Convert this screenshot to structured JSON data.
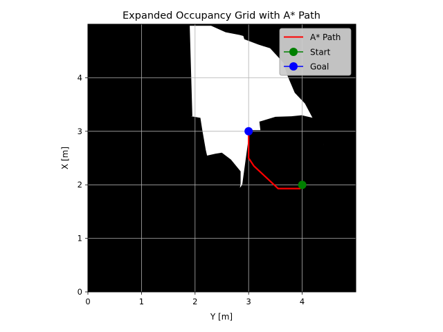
{
  "chart_data": {
    "type": "line",
    "title": "Expanded Occupancy Grid with A* Path",
    "xlabel": "Y [m]",
    "ylabel": "X [m]",
    "xlim": [
      0,
      5
    ],
    "ylim": [
      0,
      5
    ],
    "xticks": [
      "0",
      "1",
      "2",
      "3",
      "4"
    ],
    "yticks": [
      "0",
      "1",
      "2",
      "3",
      "4"
    ],
    "grid": true,
    "legend_position": "top-right",
    "background": {
      "type": "occupancy-grid",
      "occupied_color": "#000000",
      "free_color": "#ffffff",
      "free_regions": [
        [
          [
            1.93,
            3.28
          ],
          [
            2.1,
            3.25
          ],
          [
            2.13,
            3.05
          ],
          [
            2.2,
            2.65
          ],
          [
            2.28,
            2.3
          ],
          [
            2.37,
            2.05
          ],
          [
            2.6,
            1.83
          ],
          [
            2.78,
            1.87
          ],
          [
            2.88,
            2.0
          ],
          [
            3.02,
            3.02
          ],
          [
            3.02,
            3.1
          ],
          [
            3.16,
            3.65
          ],
          [
            3.18,
            4.03
          ],
          [
            3.02,
            4.05
          ],
          [
            2.88,
            3.92
          ],
          [
            2.65,
            3.83
          ],
          [
            2.5,
            3.77
          ],
          [
            2.38,
            3.73
          ],
          [
            2.22,
            3.65
          ],
          [
            2.12,
            3.33
          ]
        ],
        [
          [
            1.9,
            4.97
          ],
          [
            2.3,
            4.97
          ],
          [
            2.57,
            4.85
          ],
          [
            2.83,
            4.8
          ],
          [
            2.9,
            4.78
          ],
          [
            2.92,
            4.72
          ],
          [
            3.18,
            4.62
          ],
          [
            3.4,
            4.55
          ],
          [
            3.65,
            4.28
          ],
          [
            3.72,
            4.05
          ],
          [
            3.86,
            3.72
          ],
          [
            4.05,
            3.52
          ],
          [
            4.23,
            3.18
          ],
          [
            4.4,
            3.0
          ],
          [
            4.4,
            2.74
          ],
          [
            4.18,
            2.85
          ],
          [
            3.9,
            3.05
          ],
          [
            3.7,
            3.08
          ],
          [
            3.55,
            3.05
          ],
          [
            3.44,
            3.0
          ],
          [
            3.25,
            3.02
          ],
          [
            3.02,
            3.02
          ],
          [
            2.88,
            3.1
          ],
          [
            2.6,
            3.45
          ],
          [
            2.25,
            3.48
          ],
          [
            2.1,
            3.3
          ],
          [
            1.95,
            3.28
          ]
        ]
      ],
      "obstacles_inside": [
        [
          [
            1.65,
            2.5
          ],
          [
            1.66,
            2.3
          ],
          [
            1.75,
            2.05
          ],
          [
            2.0,
            1.9
          ],
          [
            2.55,
            1.67
          ],
          [
            2.8,
            1.69
          ],
          [
            2.85,
            2.03
          ],
          [
            2.85,
            2.25
          ],
          [
            2.67,
            2.47
          ],
          [
            2.5,
            2.6
          ],
          [
            2.38,
            2.58
          ],
          [
            2.15,
            2.53
          ],
          [
            1.85,
            2.58
          ],
          [
            1.67,
            2.6
          ]
        ],
        [
          [
            3.24,
            2.85
          ],
          [
            3.3,
            2.2
          ],
          [
            3.45,
            2.05
          ],
          [
            3.7,
            1.95
          ],
          [
            3.95,
            2.08
          ],
          [
            4.2,
            2.3
          ],
          [
            4.4,
            2.7
          ],
          [
            4.42,
            2.98
          ],
          [
            4.38,
            3.05
          ],
          [
            4.2,
            3.25
          ],
          [
            3.99,
            3.3
          ],
          [
            3.8,
            3.28
          ],
          [
            3.5,
            3.27
          ],
          [
            3.2,
            3.18
          ]
        ]
      ]
    },
    "series": [
      {
        "name": "A* Path",
        "color": "#ff0000",
        "marker": "none",
        "x": [
          3.0,
          3.0,
          3.1,
          3.55,
          3.97
        ],
        "y": [
          2.93,
          2.5,
          2.35,
          1.93,
          1.93
        ]
      },
      {
        "name": "Start",
        "color": "#008000",
        "marker": "circle",
        "x": [
          4.0
        ],
        "y": [
          2.0
        ]
      },
      {
        "name": "Goal",
        "color": "#0000ff",
        "marker": "circle",
        "x": [
          3.0
        ],
        "y": [
          3.0
        ]
      }
    ]
  }
}
